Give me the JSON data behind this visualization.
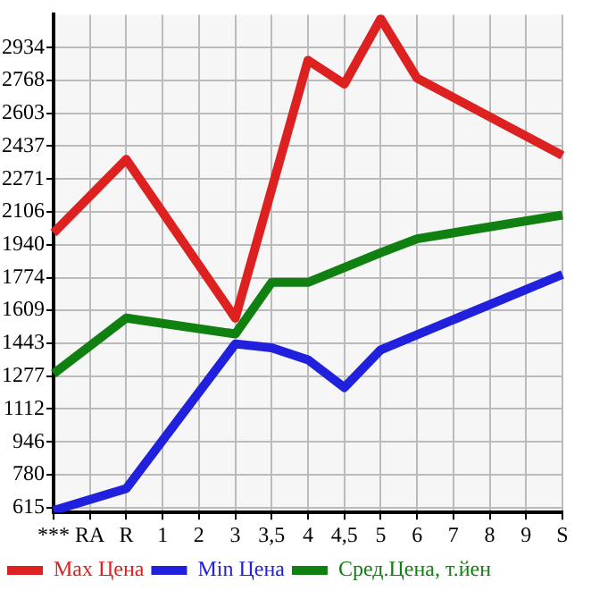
{
  "chart_data": {
    "type": "line",
    "categories": [
      "***",
      "RA",
      "R",
      "1",
      "2",
      "3",
      "3,5",
      "4",
      "4,5",
      "5",
      "6",
      "7",
      "8",
      "9",
      "S"
    ],
    "series": [
      {
        "name": "Max Цена",
        "color": "#dd2020",
        "values": [
          2000,
          null,
          2370,
          null,
          null,
          1570,
          null,
          2870,
          2750,
          3080,
          2780,
          null,
          null,
          null,
          2390
        ]
      },
      {
        "name": "Min Цена",
        "color": "#2020dd",
        "values": [
          600,
          null,
          710,
          null,
          null,
          1440,
          1420,
          1360,
          1220,
          1410,
          null,
          null,
          null,
          null,
          1790
        ]
      },
      {
        "name": "Сред.Цена, т.йен",
        "color": "#108010",
        "values": [
          1290,
          null,
          1570,
          null,
          null,
          1490,
          1750,
          1750,
          null,
          1900,
          1970,
          null,
          null,
          null,
          2090
        ]
      }
    ],
    "ylim": [
      590,
      3100
    ],
    "yticks": [
      615,
      780,
      946,
      1112,
      1277,
      1443,
      1609,
      1774,
      1940,
      2106,
      2271,
      2437,
      2603,
      2768,
      2934
    ],
    "grid": true,
    "legend": "bottom",
    "marker": "none",
    "line_style": "solid"
  }
}
